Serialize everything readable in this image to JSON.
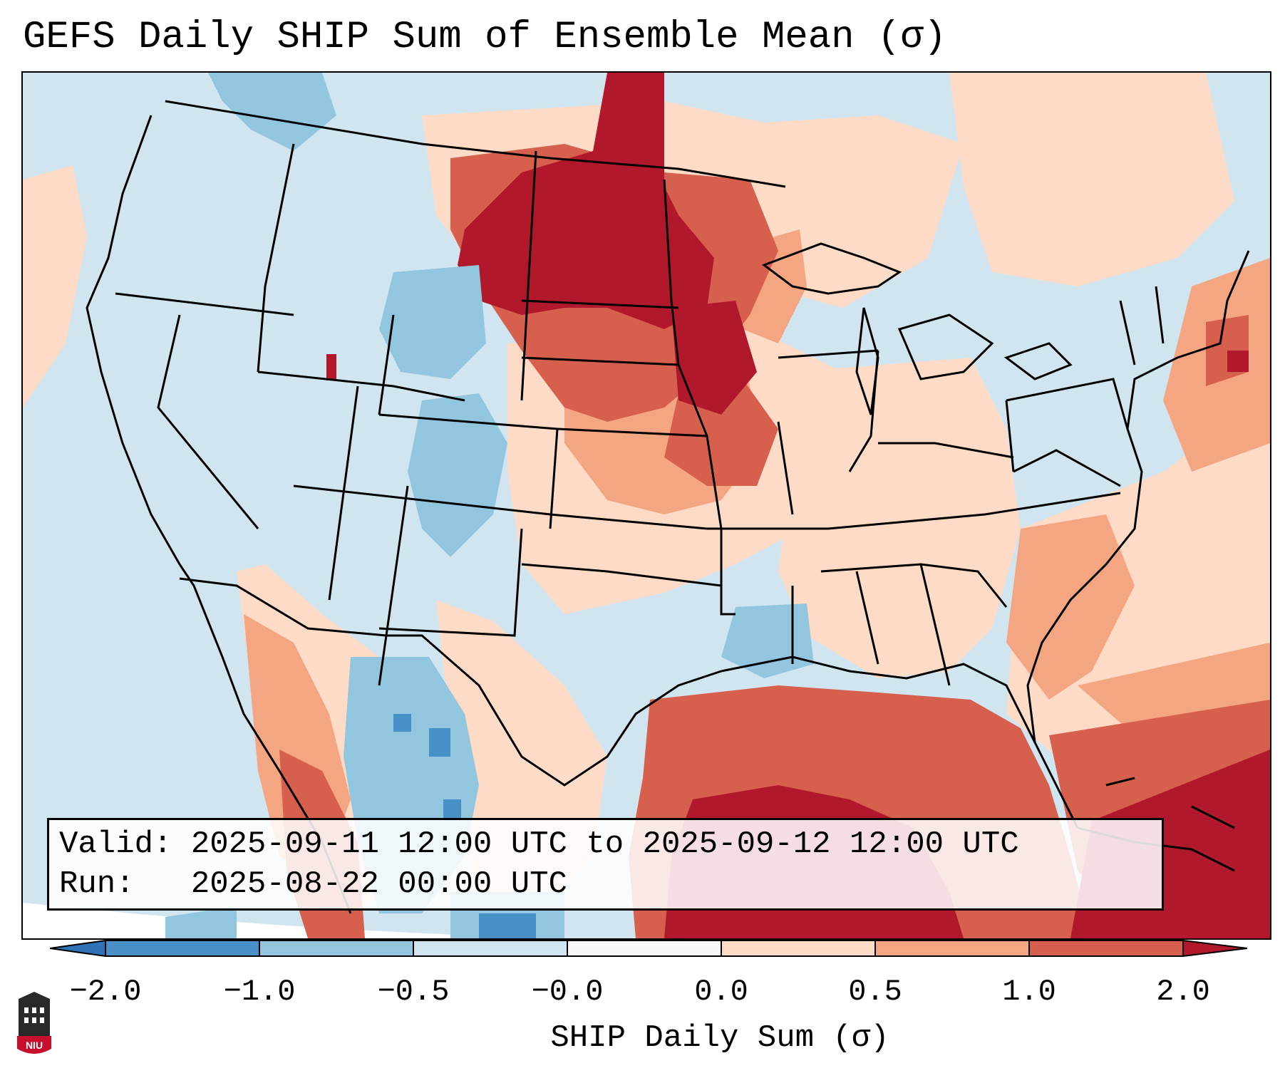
{
  "title": "GEFS Daily SHIP Sum of Ensemble Mean (σ)",
  "info": {
    "valid_label": "Valid:",
    "valid_value": "2025-09-11 12:00 UTC to 2025-09-12 12:00 UTC",
    "run_label": "Run:",
    "run_value": "2025-08-22 00:00 UTC"
  },
  "colorbar": {
    "axis_label": "SHIP Daily Sum (σ)",
    "ticks": [
      "−2.0",
      "−1.0",
      "−0.5",
      "−0.0",
      "0.0",
      "0.5",
      "1.0",
      "2.0"
    ],
    "bins": [
      {
        "range": "<-2.0",
        "color": "#2f72b8"
      },
      {
        "range": "-2.0 to -1.0",
        "color": "#4a90c8"
      },
      {
        "range": "-1.0 to -0.5",
        "color": "#92c5de"
      },
      {
        "range": "-0.5 to -0.0",
        "color": "#d1e5f0"
      },
      {
        "range": "-0.0 to 0.0",
        "color": "#f7f7f7"
      },
      {
        "range": "0.0 to 0.5",
        "color": "#fddbc7"
      },
      {
        "range": "0.5 to 1.0",
        "color": "#f4a582"
      },
      {
        "range": "1.0 to 2.0",
        "color": "#d6604d"
      },
      {
        "range": ">2.0",
        "color": "#b2182b"
      }
    ]
  },
  "colors": {
    "background": "#d1e5f0",
    "ocean_pos": "#fddbc7",
    "gulf": "#d6604d",
    "strong": "#b2182b"
  },
  "logo_text": "NIU"
}
